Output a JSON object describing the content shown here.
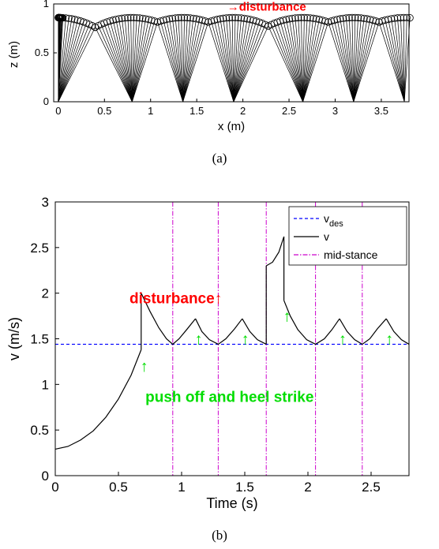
{
  "chart_data": [
    {
      "type": "line",
      "caption": "(a)",
      "xlabel": "x (m)",
      "ylabel": "z (m)",
      "xlim": [
        -0.05,
        3.8
      ],
      "ylim": [
        0,
        1
      ],
      "xticks": [
        0,
        0.5,
        1,
        1.5,
        2,
        2.5,
        3,
        3.5
      ],
      "xtick_labels": [
        "0",
        "0.5",
        "1",
        "1.5",
        "2",
        "2.5",
        "3",
        "3.5"
      ],
      "yticks": [
        0,
        0.5,
        1
      ],
      "ytick_labels": [
        "0",
        "0.5",
        "1"
      ],
      "stance_foot_x": [
        0.0,
        0.8,
        1.35,
        1.9,
        2.65,
        3.2,
        3.75
      ],
      "hip_height_peak": 0.86,
      "hip_height_transition": 0.75,
      "annotation": {
        "text": "→disturbance",
        "x": 1.83,
        "y": 0.93
      }
    },
    {
      "type": "line",
      "caption": "(b)",
      "xlabel": "Time (s)",
      "ylabel": "v (m/s)",
      "xlim": [
        0,
        2.8
      ],
      "ylim": [
        0,
        3
      ],
      "xticks": [
        0,
        0.5,
        1,
        1.5,
        2,
        2.5
      ],
      "xtick_labels": [
        "0",
        "0.5",
        "1",
        "1.5",
        "2",
        "2.5"
      ],
      "yticks": [
        0,
        0.5,
        1,
        1.5,
        2,
        2.5,
        3
      ],
      "ytick_labels": [
        "0",
        "0.5",
        "1",
        "1.5",
        "2",
        "2.5",
        "3"
      ],
      "legend": {
        "position": "top-right",
        "entries": [
          {
            "label": "v",
            "sub": "des",
            "color": "#0000ff",
            "style": "dashed"
          },
          {
            "label": "v",
            "sub": "",
            "color": "#000000",
            "style": "solid"
          },
          {
            "label": "mid-stance",
            "sub": "",
            "color": "#cc00cc",
            "style": "dashdot"
          }
        ]
      },
      "v_des": 1.44,
      "mid_stance_times": [
        0.93,
        1.29,
        1.67,
        2.06,
        2.43
      ],
      "velocity_segments": [
        {
          "x": [
            0.0,
            0.1,
            0.2,
            0.3,
            0.4,
            0.5,
            0.6,
            0.68
          ],
          "y": [
            0.29,
            0.32,
            0.39,
            0.49,
            0.64,
            0.84,
            1.1,
            1.38
          ]
        },
        {
          "x": [
            0.68,
            0.68
          ],
          "y": [
            1.38,
            2.0
          ]
        },
        {
          "x": [
            0.68,
            0.75,
            0.82,
            0.88,
            0.93,
            0.98,
            1.04,
            1.11
          ],
          "y": [
            2.0,
            1.8,
            1.62,
            1.5,
            1.44,
            1.5,
            1.6,
            1.72
          ]
        },
        {
          "x": [
            1.11,
            1.16,
            1.22,
            1.29,
            1.35,
            1.42,
            1.48
          ],
          "y": [
            1.72,
            1.58,
            1.49,
            1.44,
            1.5,
            1.61,
            1.72
          ]
        },
        {
          "x": [
            1.48,
            1.54,
            1.6,
            1.67
          ],
          "y": [
            1.72,
            1.58,
            1.49,
            1.44
          ]
        },
        {
          "x": [
            1.67,
            1.67
          ],
          "y": [
            1.44,
            2.3
          ]
        },
        {
          "x": [
            1.67,
            1.72,
            1.77,
            1.81
          ],
          "y": [
            2.3,
            2.34,
            2.45,
            2.62
          ]
        },
        {
          "x": [
            1.81,
            1.81
          ],
          "y": [
            2.62,
            1.92
          ]
        },
        {
          "x": [
            1.81,
            1.86,
            1.92,
            1.99,
            2.06,
            2.13,
            2.19,
            2.25
          ],
          "y": [
            1.92,
            1.75,
            1.6,
            1.49,
            1.44,
            1.5,
            1.6,
            1.72
          ]
        },
        {
          "x": [
            2.25,
            2.31,
            2.37,
            2.43,
            2.49,
            2.55,
            2.62
          ],
          "y": [
            1.72,
            1.58,
            1.49,
            1.44,
            1.5,
            1.61,
            1.72
          ]
        },
        {
          "x": [
            2.62,
            2.68,
            2.74,
            2.8
          ],
          "y": [
            1.72,
            1.58,
            1.49,
            1.44
          ]
        }
      ],
      "push_off_arrows": [
        {
          "x": 0.68,
          "y": 1.2
        },
        {
          "x": 1.11,
          "y": 1.5
        },
        {
          "x": 1.48,
          "y": 1.5
        },
        {
          "x": 1.81,
          "y": 1.75
        },
        {
          "x": 2.25,
          "y": 1.5
        },
        {
          "x": 2.62,
          "y": 1.5
        }
      ],
      "annotations": [
        {
          "text": "disturbance↑",
          "x": 1.15,
          "y": 1.95,
          "color": "#ff0000"
        },
        {
          "text": "push off and heel strike",
          "x": 1.38,
          "y": 0.87,
          "color": "#00dd00"
        }
      ]
    }
  ],
  "colors": {
    "legs": "#000000",
    "hip_circles": "#000000",
    "v_des": "#0000ff",
    "mid_stance": "#cc00cc",
    "arrow": "#00dd00",
    "disturbance": "#ff0000"
  }
}
